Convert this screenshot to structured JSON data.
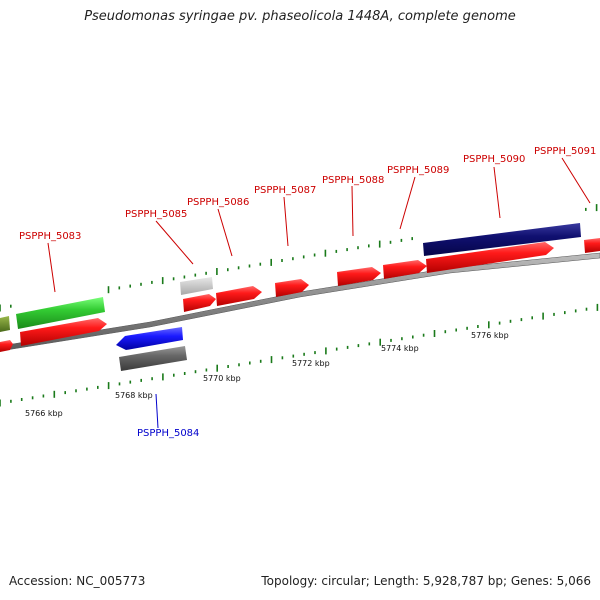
{
  "title": "Pseudomonas syringae pv. phaseolicola 1448A, complete genome",
  "footer": {
    "accession": "Accession: NC_005773",
    "summary": "Topology: circular; Length: 5,928,787 bp; Genes: 5,066"
  },
  "scale_labels": [
    "5766 kbp",
    "5768 kbp",
    "5770 kbp",
    "5772 kbp",
    "5774 kbp",
    "5776 kbp"
  ],
  "gene_labels": [
    {
      "id": "PSPPH_5083",
      "strand": "forward",
      "color": "#cc0000"
    },
    {
      "id": "PSPPH_5084",
      "strand": "reverse",
      "color": "#0000cc"
    },
    {
      "id": "PSPPH_5085",
      "strand": "forward",
      "color": "#cc0000"
    },
    {
      "id": "PSPPH_5086",
      "strand": "forward",
      "color": "#cc0000"
    },
    {
      "id": "PSPPH_5087",
      "strand": "forward",
      "color": "#cc0000"
    },
    {
      "id": "PSPPH_5088",
      "strand": "forward",
      "color": "#cc0000"
    },
    {
      "id": "PSPPH_5089",
      "strand": "forward",
      "color": "#cc0000"
    },
    {
      "id": "PSPPH_5090",
      "strand": "forward",
      "color": "#cc0000"
    },
    {
      "id": "PSPPH_5091",
      "strand": "forward",
      "color": "#cc0000"
    }
  ],
  "feature_colors": {
    "cds": "#ff1a1a",
    "rna": "#2a2aff",
    "gene_other": "#666666",
    "pseudo": "#c8c8c8",
    "operon": "#0a0a7a",
    "region": "#33cc33",
    "region_dark": "#6b8e23",
    "backbone": "#888888",
    "tick": "#1a7a1a"
  }
}
